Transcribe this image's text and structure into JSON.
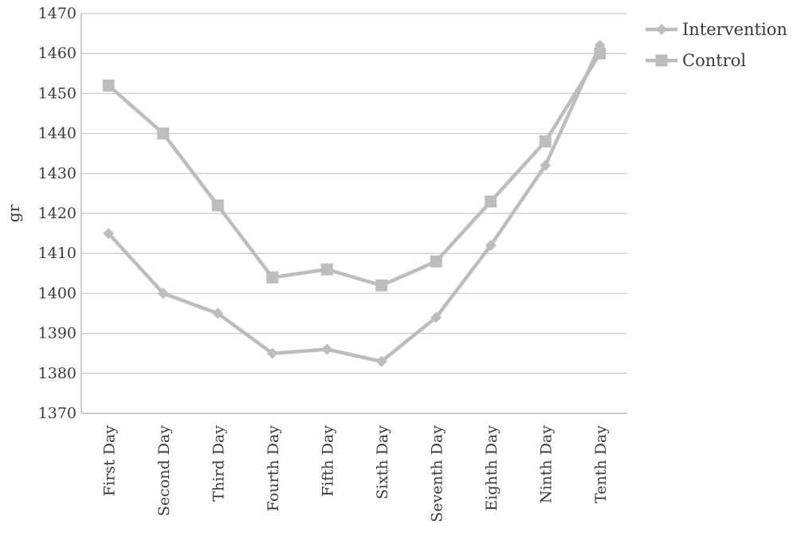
{
  "chart_data": {
    "type": "line",
    "categories": [
      "First Day",
      "Second Day",
      "Third Day",
      "Fourth Day",
      "Fifth Day",
      "Sixth Day",
      "Seventh Day",
      "Eighth Day",
      "Ninth Day",
      "Tenth Day"
    ],
    "series": [
      {
        "name": "Intervention",
        "marker": "diamond",
        "color": "#bdbdbd",
        "values": [
          1415,
          1400,
          1395,
          1385,
          1386,
          1383,
          1394,
          1412,
          1432,
          1462
        ]
      },
      {
        "name": "Control",
        "marker": "square",
        "color": "#bdbdbd",
        "values": [
          1452,
          1440,
          1422,
          1404,
          1406,
          1402,
          1408,
          1423,
          1438,
          1460
        ]
      }
    ],
    "ylabel": "gr",
    "ylim": [
      1370,
      1470
    ],
    "yticks": [
      1370,
      1380,
      1390,
      1400,
      1410,
      1420,
      1430,
      1440,
      1450,
      1460,
      1470
    ],
    "grid": true,
    "legend_position": "top-right"
  }
}
